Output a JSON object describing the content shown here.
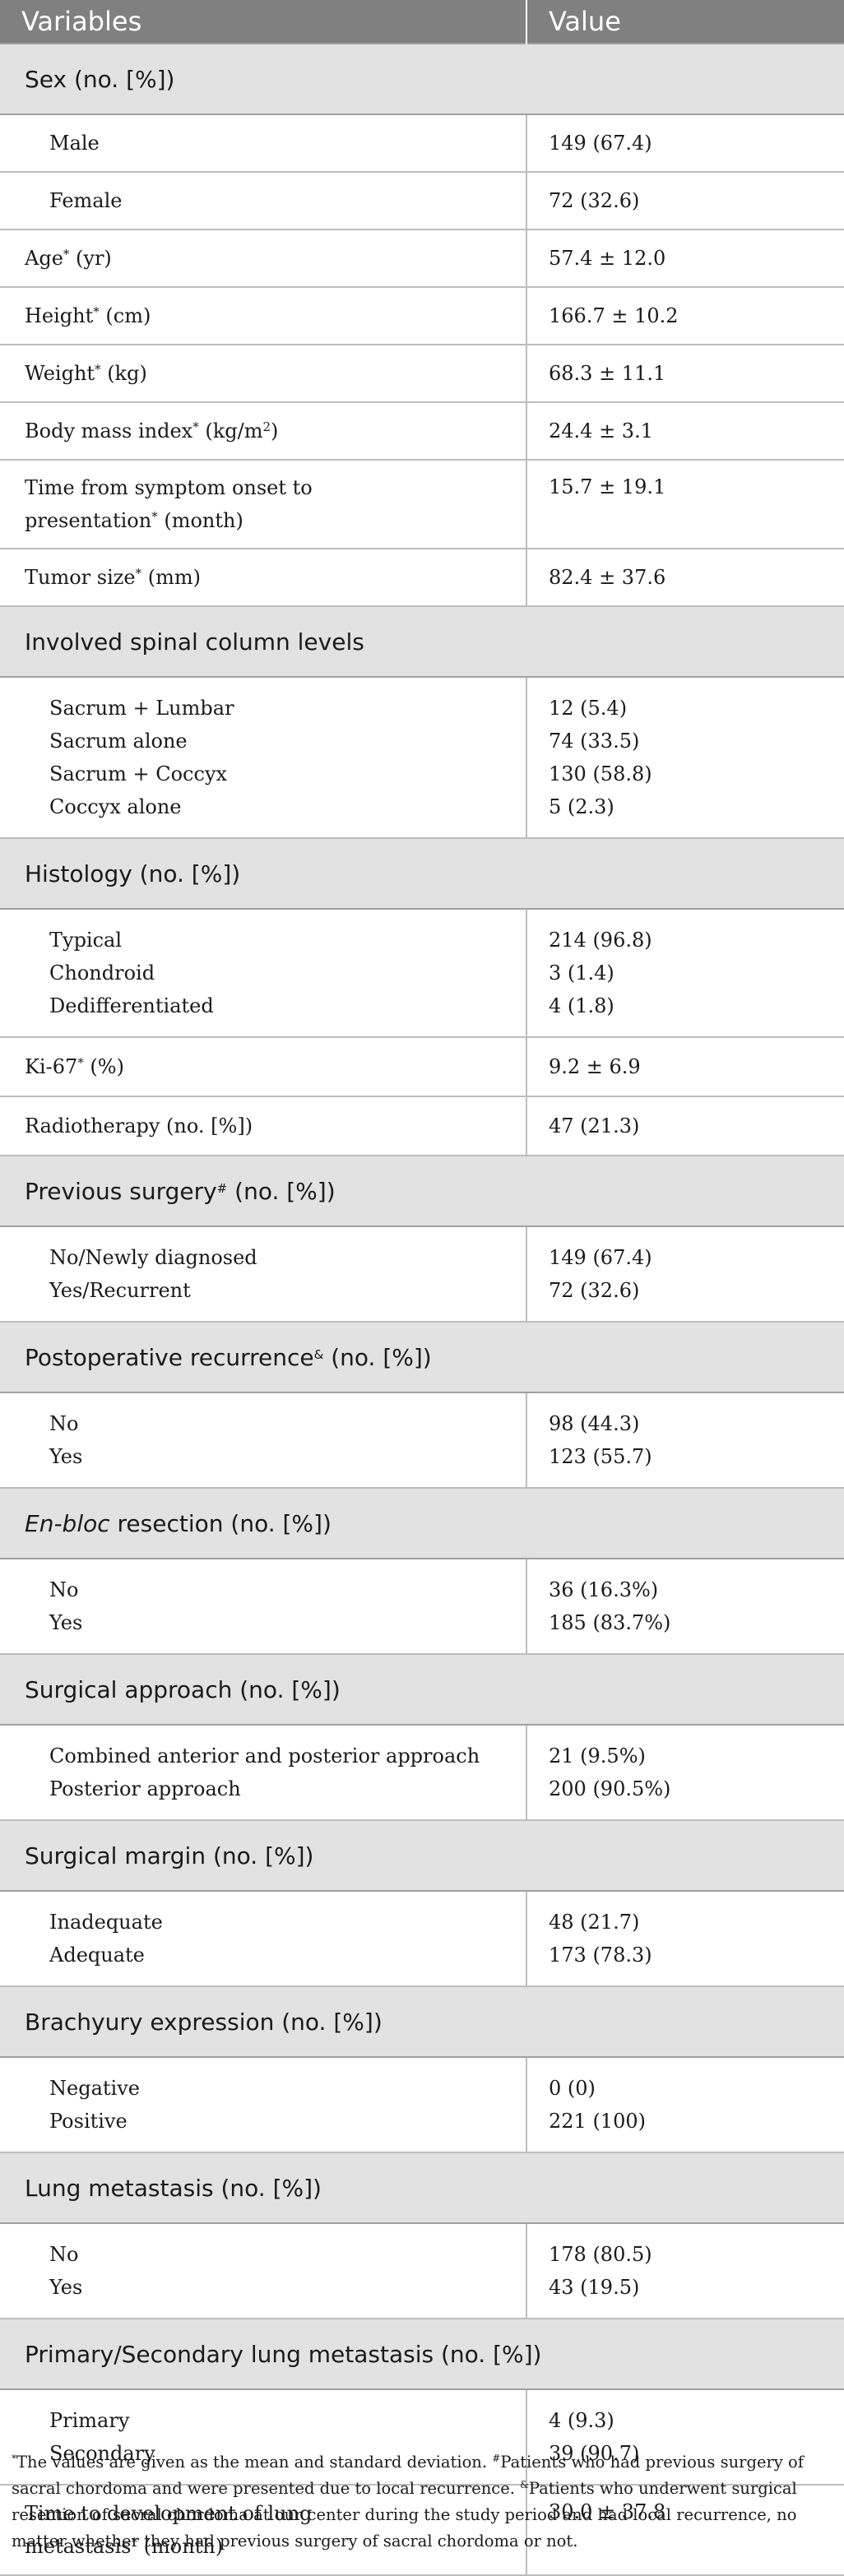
{
  "header": {
    "variables": "Variables",
    "value": "Value"
  },
  "sex": {
    "label": "Sex (no. [%])",
    "male": {
      "label": "Male",
      "value": "149 (67.4)"
    },
    "female": {
      "label": "Female",
      "value": "72 (32.6)"
    }
  },
  "age": {
    "label": "Age",
    "sup": "*",
    "unit": " (yr)",
    "value": "57.4 ± 12.0"
  },
  "height": {
    "label": "Height",
    "sup": "*",
    "unit": " (cm)",
    "value": "166.7 ± 10.2"
  },
  "weight": {
    "label": "Weight",
    "sup": "*",
    "unit": " (kg)",
    "value": "68.3 ± 11.1"
  },
  "bmi": {
    "label": "Body mass index",
    "sup": "*",
    "unit": " (kg/m",
    "sup2": "2",
    "close": ")",
    "value": "24.4 ± 3.1"
  },
  "time_symptom": {
    "line1": "Time from symptom onset to",
    "line2": "presentation",
    "sup": "*",
    "unit": " (month)",
    "value": "15.7 ± 19.1"
  },
  "tumor_size": {
    "label": "Tumor size",
    "sup": "*",
    "unit": " (mm)",
    "value": "82.4 ± 37.6"
  },
  "levels": {
    "label": "Involved spinal column levels",
    "items": [
      {
        "label": "Sacrum + Lumbar",
        "value": "12 (5.4)"
      },
      {
        "label": "Sacrum alone",
        "value": "74 (33.5)"
      },
      {
        "label": "Sacrum + Coccyx",
        "value": "130 (58.8)"
      },
      {
        "label": "Coccyx alone",
        "value": "5 (2.3)"
      }
    ]
  },
  "histology": {
    "label": "Histology (no. [%])",
    "items": [
      {
        "label": "Typical",
        "value": "214 (96.8)"
      },
      {
        "label": "Chondroid",
        "value": "3 (1.4)"
      },
      {
        "label": "Dedifferentiated",
        "value": "4 (1.8)"
      }
    ]
  },
  "ki67": {
    "label": "Ki-67",
    "sup": "*",
    "unit": " (%)",
    "value": "9.2 ± 6.9"
  },
  "radiotherapy": {
    "label": "Radiotherapy (no. [%])",
    "value": "47 (21.3)"
  },
  "previous_surgery": {
    "label": "Previous surgery",
    "sup": "#",
    "unit": " (no. [%])",
    "items": [
      {
        "label": "No/Newly diagnosed",
        "value": "149 (67.4)"
      },
      {
        "label": "Yes/Recurrent",
        "value": "72 (32.6)"
      }
    ]
  },
  "recurrence": {
    "label": "Postoperative recurrence",
    "sup": "&",
    "unit": " (no. [%])",
    "items": [
      {
        "label": "No",
        "value": "98 (44.3)"
      },
      {
        "label": "Yes",
        "value": "123 (55.7)"
      }
    ]
  },
  "enbloc": {
    "label_italic": "En-bloc",
    "label_rest": " resection (no. [%])",
    "items": [
      {
        "label": "No",
        "value": "36 (16.3%)"
      },
      {
        "label": "Yes",
        "value": "185 (83.7%)"
      }
    ]
  },
  "approach": {
    "label": "Surgical approach (no. [%])",
    "items": [
      {
        "label": "Combined anterior and posterior approach",
        "value": "21 (9.5%)"
      },
      {
        "label": "Posterior approach",
        "value": "200 (90.5%)"
      }
    ]
  },
  "margin": {
    "label": "Surgical margin (no. [%])",
    "items": [
      {
        "label": "Inadequate",
        "value": "48 (21.7)"
      },
      {
        "label": "Adequate",
        "value": "173 (78.3)"
      }
    ]
  },
  "brachyury": {
    "label": "Brachyury expression (no. [%])",
    "items": [
      {
        "label": "Negative",
        "value": "0 (0)"
      },
      {
        "label": "Positive",
        "value": "221 (100)"
      }
    ]
  },
  "lung": {
    "label": "Lung metastasis (no. [%])",
    "items": [
      {
        "label": "No",
        "value": "178 (80.5)"
      },
      {
        "label": "Yes",
        "value": "43 (19.5)"
      }
    ]
  },
  "primary_secondary": {
    "label": "Primary/Secondary lung metastasis (no. [%])",
    "items": [
      {
        "label": "Primary",
        "value": "4 (9.3)"
      },
      {
        "label": "Secondary",
        "value": "39 (90.7)"
      }
    ]
  },
  "time_lung": {
    "line1": "Time to development of lung",
    "line2": "metastasis",
    "sup": "*",
    "unit": " (month)",
    "value": "30.0 ± 37.8"
  },
  "footnotes": {
    "star_sup": "*",
    "star_text": "The values are given as the mean and standard deviation. ",
    "hash_sup": "#",
    "hash_text": "Patients who had previous surgery of sacral chordoma and were presented due to local recurrence. ",
    "amp_sup": "&",
    "amp_text": "Patients who underwent surgical resection of sacral chordoma at our center during the study period and had local recurrence, no matter whether they had previous surgery of sacral chordoma or not."
  }
}
